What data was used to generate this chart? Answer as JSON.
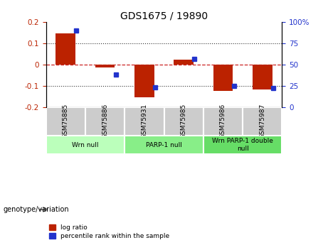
{
  "title": "GDS1675 / 19890",
  "samples": [
    "GSM75885",
    "GSM75886",
    "GSM75931",
    "GSM75985",
    "GSM75986",
    "GSM75987"
  ],
  "log_ratio": [
    0.148,
    -0.015,
    -0.155,
    0.022,
    -0.125,
    -0.118
  ],
  "percentile_rank": [
    90,
    38,
    23,
    57,
    25,
    22
  ],
  "groups": [
    {
      "label": "Wrn null",
      "start": 0,
      "end": 2,
      "color": "#bbffbb"
    },
    {
      "label": "PARP-1 null",
      "start": 2,
      "end": 4,
      "color": "#88ee88"
    },
    {
      "label": "Wrn PARP-1 double\nnull",
      "start": 4,
      "end": 6,
      "color": "#66dd66"
    }
  ],
  "ylim_left": [
    -0.2,
    0.2
  ],
  "ylim_right": [
    0,
    100
  ],
  "yticks_left": [
    -0.2,
    -0.1,
    0.0,
    0.1,
    0.2
  ],
  "yticks_right": [
    0,
    25,
    50,
    75,
    100
  ],
  "bar_width": 0.5,
  "red_color": "#bb2200",
  "blue_color": "#2233cc",
  "grid_color": "#333333",
  "zero_line_color": "#cc2222",
  "bg_color": "#ffffff",
  "plot_bg": "#ffffff",
  "sample_box_color": "#cccccc",
  "legend_red": "log ratio",
  "legend_blue": "percentile rank within the sample",
  "genotype_label": "genotype/variation"
}
